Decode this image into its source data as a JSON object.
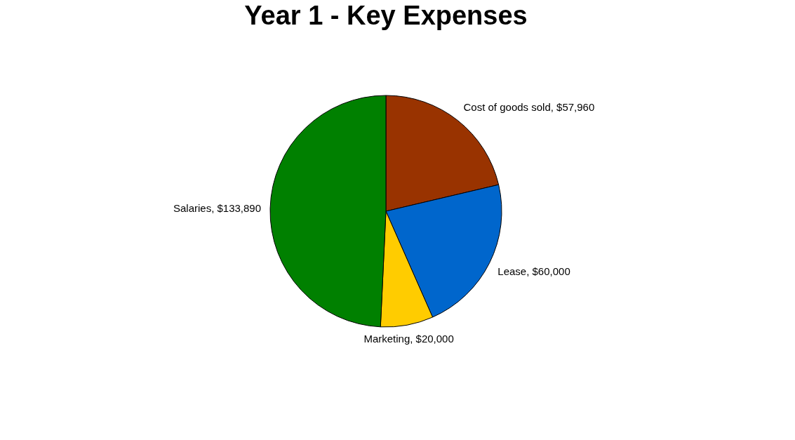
{
  "chart_data": {
    "type": "pie",
    "title": "Year 1 - Key Expenses",
    "categories": [
      "Cost of goods sold",
      "Lease",
      "Marketing",
      "Salaries"
    ],
    "values": [
      57960,
      60000,
      20000,
      133890
    ],
    "colors": [
      "#993300",
      "#0066cc",
      "#ffcc00",
      "#008000"
    ],
    "value_labels": [
      "$57,960",
      "$60,000",
      "$20,000",
      "$133,890"
    ],
    "legend": false
  }
}
